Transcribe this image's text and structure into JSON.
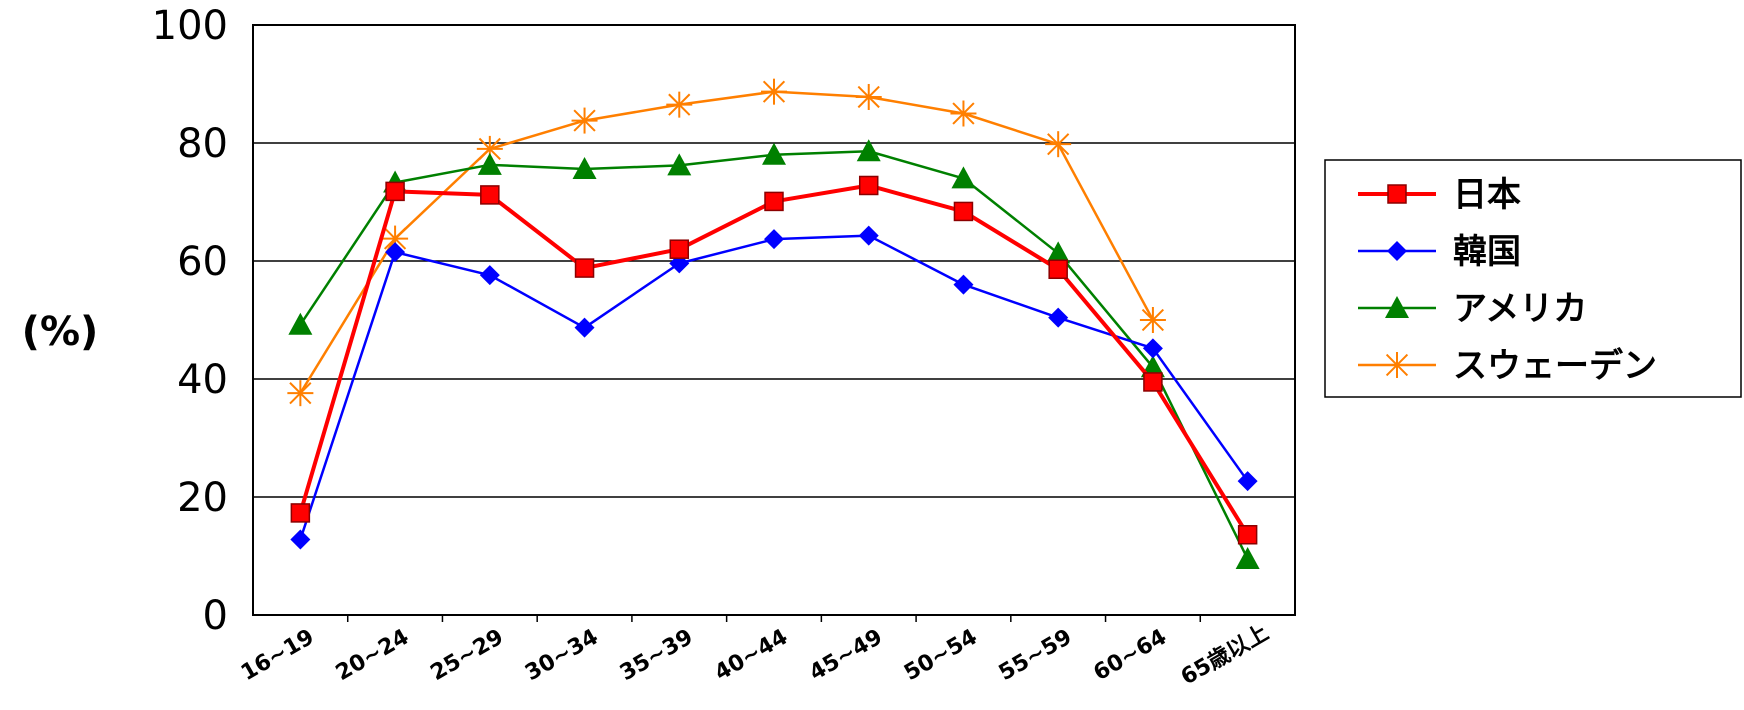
{
  "chart_data": {
    "type": "line",
    "title": "",
    "xlabel": "",
    "ylabel": "(%)",
    "ylim": [
      0,
      100
    ],
    "yticks": [
      "0",
      "20",
      "40",
      "60",
      "80",
      "100"
    ],
    "categories": [
      "16~19",
      "20~24",
      "25~29",
      "30~34",
      "35~39",
      "40~44",
      "45~49",
      "50~54",
      "55~59",
      "60~64",
      "65歳以上"
    ],
    "grid": "horizontal",
    "legend_position": "right",
    "series": [
      {
        "name": "日本",
        "color": "#ff0000",
        "marker": "square",
        "values": [
          17.3,
          71.8,
          71.2,
          58.8,
          62.0,
          70.1,
          72.8,
          68.4,
          58.6,
          39.5,
          13.6
        ]
      },
      {
        "name": "韓国",
        "color": "#0000ff",
        "marker": "diamond",
        "values": [
          12.8,
          61.5,
          57.6,
          48.7,
          59.6,
          63.7,
          64.3,
          56.0,
          50.4,
          45.2,
          22.7
        ]
      },
      {
        "name": "アメリカ",
        "color": "#008000",
        "marker": "triangle",
        "values": [
          49.2,
          73.3,
          76.3,
          75.6,
          76.2,
          78.0,
          78.6,
          74.0,
          61.3,
          42.0,
          9.5
        ]
      },
      {
        "name": "スウェーデン",
        "color": "#ff7f00",
        "marker": "star",
        "values": [
          37.6,
          63.8,
          79.0,
          83.8,
          86.5,
          88.7,
          87.8,
          85.0,
          79.8,
          50.0,
          null
        ]
      }
    ]
  }
}
